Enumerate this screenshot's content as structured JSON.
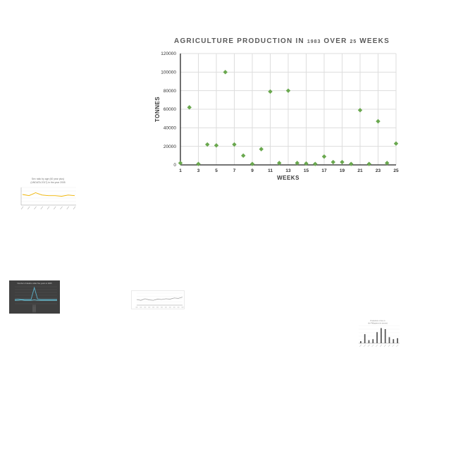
{
  "main": {
    "title_pre": "AGRICULTURE PRODUCTION IN",
    "title_year": "1983",
    "title_mid": "OVER",
    "title_weeks": "25",
    "title_post": "WEEKS"
  },
  "chart_data": [
    {
      "type": "scatter",
      "title": "AGRICULTURE PRODUCTION IN 1983 OVER 25 WEEKS",
      "xlabel": "WEEKS",
      "ylabel": "TONNES",
      "xlim": [
        1,
        25
      ],
      "ylim": [
        0,
        120000
      ],
      "x_ticks": [
        1,
        3,
        5,
        7,
        9,
        11,
        13,
        15,
        17,
        19,
        21,
        23,
        25
      ],
      "y_ticks": [
        0,
        20000,
        40000,
        60000,
        80000,
        100000,
        120000
      ],
      "grid": true,
      "color": "#6aa84f",
      "x": [
        1,
        2,
        3,
        4,
        5,
        6,
        7,
        8,
        9,
        10,
        11,
        12,
        13,
        14,
        15,
        16,
        17,
        18,
        19,
        20,
        21,
        22,
        23,
        24,
        25
      ],
      "y": [
        2000,
        62000,
        1000,
        22000,
        21000,
        100000,
        22000,
        10000,
        1000,
        17000,
        79000,
        2000,
        80000,
        2000,
        1500,
        1000,
        9000,
        3000,
        3000,
        1000,
        59000,
        1000,
        47000,
        2000,
        23000
      ]
    },
    {
      "type": "line",
      "title": "Sex ratio by age (60 year plus) (UNDATA 2017) in the year 2005",
      "color": "#f0b400",
      "values": [
        78,
        76,
        81,
        77,
        76,
        76,
        75,
        77,
        76
      ]
    },
    {
      "type": "line",
      "title": "Number of deaths under five years in 2005",
      "colors": [
        "#5aaec6",
        "#6fd0e6"
      ],
      "series": [
        {
          "values": [
            10,
            11,
            10,
            10,
            10,
            10,
            38,
            11,
            10,
            10,
            10,
            10,
            10,
            10
          ]
        },
        {
          "values": [
            8,
            8,
            9,
            8,
            8,
            8,
            9,
            8,
            8,
            8,
            8,
            8,
            8,
            8
          ]
        }
      ]
    },
    {
      "type": "line",
      "color": "#999999",
      "values": [
        14,
        12,
        16,
        13,
        12,
        15,
        14,
        16,
        15,
        18,
        17,
        20
      ]
    },
    {
      "type": "bar",
      "title": "Production of rice in the Philippines (in tonnes)",
      "color": "#555555",
      "values": [
        4,
        18,
        6,
        8,
        22,
        30,
        28,
        12,
        8,
        10
      ]
    }
  ]
}
